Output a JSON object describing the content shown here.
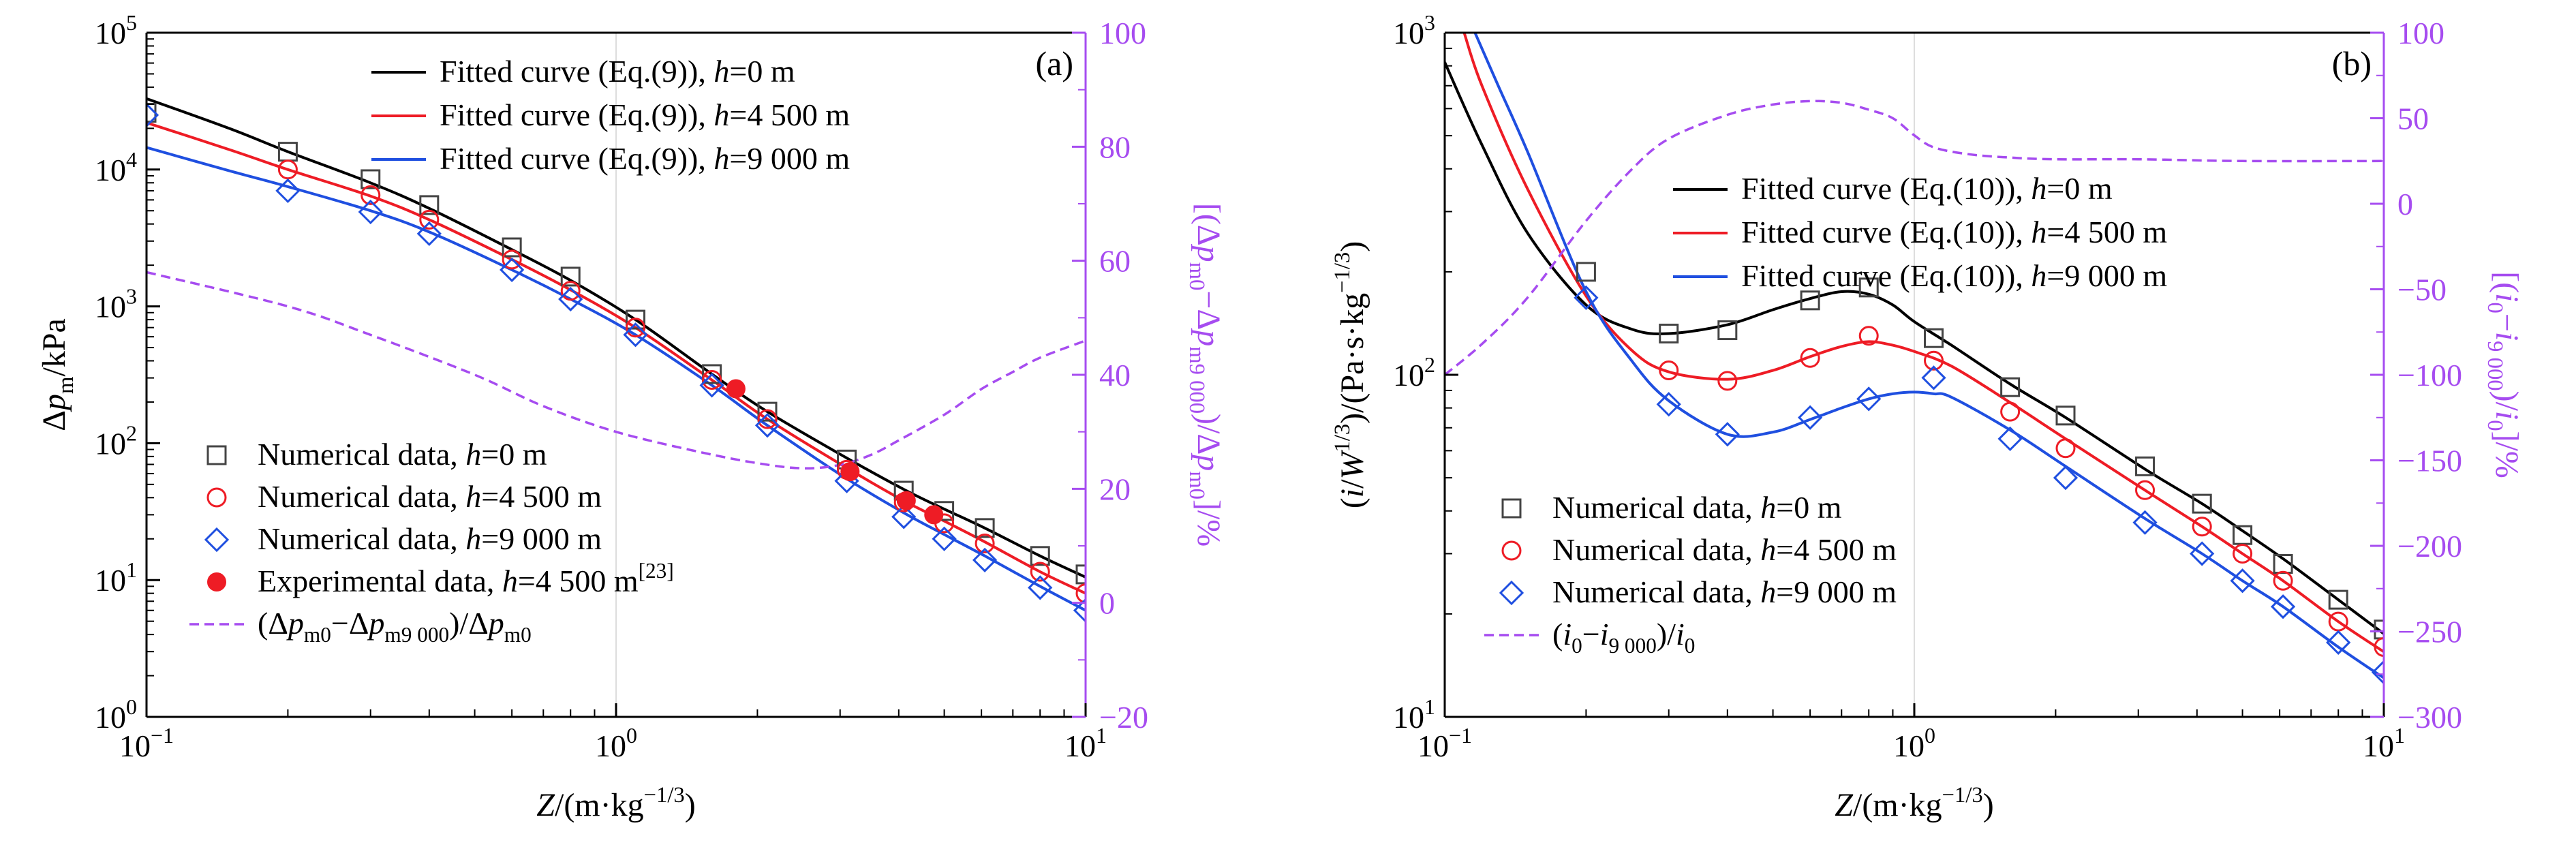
{
  "chart_data": [
    {
      "type": "scatter",
      "panel_label": "(a)",
      "xlabel": "Z/(m·kg⁻¹ᐟ³)",
      "ylabel": "Δp_m/kPa",
      "ylabel_right": "[(Δp_m0−Δp_m9 000)/Δp_m0]/%",
      "x_scale": "log",
      "y_scale": "log",
      "xlim": [
        0.1,
        10
      ],
      "ylim": [
        1,
        100000
      ],
      "y2lim": [
        -20,
        100
      ],
      "x_ticks": [
        {
          "value": 0.1,
          "base": "10",
          "exp": "−1"
        },
        {
          "value": 1,
          "base": "10",
          "exp": "0"
        },
        {
          "value": 10,
          "base": "10",
          "exp": "1"
        }
      ],
      "y_ticks": [
        {
          "value": 1,
          "base": "10",
          "exp": "0"
        },
        {
          "value": 10,
          "base": "10",
          "exp": "1"
        },
        {
          "value": 100,
          "base": "10",
          "exp": "2"
        },
        {
          "value": 1000,
          "base": "10",
          "exp": "3"
        },
        {
          "value": 10000,
          "base": "10",
          "exp": "4"
        },
        {
          "value": 100000,
          "base": "10",
          "exp": "5"
        }
      ],
      "y2_ticks": [
        "−20",
        "0",
        "20",
        "40",
        "60",
        "80",
        "100"
      ],
      "y2_tick_values": [
        -20,
        0,
        20,
        40,
        60,
        80,
        100
      ],
      "legend_top": [
        {
          "label": "Fitted curve (Eq.(9)), h=0 m",
          "color": "#000000"
        },
        {
          "label": "Fitted curve (Eq.(9)), h=4 500 m",
          "color": "#ee1c25"
        },
        {
          "label": "Fitted curve (Eq.(9)), h=9 000 m",
          "color": "#1f4fe0"
        }
      ],
      "legend_bottom": [
        {
          "label": "Numerical data, h=0 m",
          "marker": "square",
          "color": "#444444"
        },
        {
          "label": "Numerical data, h=4 500 m",
          "marker": "circle",
          "color": "#ee1c25"
        },
        {
          "label": "Numerical data, h=9 000 m",
          "marker": "diamond",
          "color": "#1f4fe0"
        },
        {
          "label": "Experimental data, h=4 500 m[23]",
          "marker": "filled-circle",
          "color": "#ee1c25"
        },
        {
          "label": "(Δp_m0−Δp_m9 000)/Δp_m0",
          "marker": "dash",
          "color": "#a64cf0"
        }
      ],
      "series": [
        {
          "name": "Fitted curve (Eq.(9)), h=0 m",
          "kind": "line",
          "color": "#000000",
          "x": [
            0.1,
            0.15,
            0.2,
            0.3,
            0.4,
            0.6,
            0.8,
            1.1,
            1.6,
            2.1,
            3.1,
            4.1,
            5,
            6.1,
            8,
            10
          ],
          "y": [
            33000,
            20000,
            13500,
            8000,
            5200,
            2600,
            1550,
            800,
            320,
            170,
            78,
            46,
            33,
            24,
            15,
            10.5
          ]
        },
        {
          "name": "Fitted curve (Eq.(9)), h=4 500 m",
          "kind": "line",
          "color": "#ee1c25",
          "x": [
            0.1,
            0.15,
            0.2,
            0.3,
            0.4,
            0.6,
            0.8,
            1.1,
            1.6,
            2.1,
            3.1,
            4.1,
            5,
            6.1,
            8,
            10
          ],
          "y": [
            22000,
            14000,
            10000,
            6400,
            4300,
            2200,
            1320,
            700,
            290,
            150,
            66,
            38,
            27,
            19,
            11.5,
            8
          ]
        },
        {
          "name": "Fitted curve (Eq.(9)), h=9 000 m",
          "kind": "line",
          "color": "#1f4fe0",
          "x": [
            0.1,
            0.15,
            0.2,
            0.3,
            0.4,
            0.6,
            0.8,
            1.1,
            1.6,
            2.1,
            3.1,
            4.1,
            5,
            6.1,
            8,
            10
          ],
          "y": [
            14500,
            9800,
            7500,
            5000,
            3500,
            1850,
            1130,
            620,
            265,
            135,
            55,
            31,
            21.5,
            15,
            9,
            6
          ]
        },
        {
          "name": "Numerical data, h=0 m",
          "kind": "points",
          "marker": "square",
          "color": "#444444",
          "x": [
            0.1,
            0.2,
            0.3,
            0.4,
            0.6,
            0.8,
            1.1,
            1.6,
            2.1,
            3.1,
            4.1,
            5,
            6.1,
            8,
            10
          ],
          "y": [
            26000,
            13500,
            8500,
            5500,
            2700,
            1650,
            800,
            320,
            170,
            76,
            45,
            32,
            24,
            15,
            11
          ]
        },
        {
          "name": "Numerical data, h=4 500 m",
          "kind": "points",
          "marker": "circle",
          "color": "#ee1c25",
          "x": [
            0.2,
            0.3,
            0.4,
            0.6,
            0.8,
            1.1,
            1.6,
            2.1,
            3.1,
            4.1,
            5,
            6.1,
            8,
            10
          ],
          "y": [
            10000,
            6500,
            4300,
            2200,
            1300,
            700,
            290,
            150,
            64,
            37,
            26,
            18.5,
            11.5,
            8
          ]
        },
        {
          "name": "Numerical data, h=9 000 m",
          "kind": "points",
          "marker": "diamond",
          "color": "#1f4fe0",
          "x": [
            0.1,
            0.2,
            0.3,
            0.4,
            0.6,
            0.8,
            1.1,
            1.6,
            2.1,
            3.1,
            4.1,
            5,
            6.1,
            8,
            10
          ],
          "y": [
            25000,
            7000,
            4900,
            3400,
            1850,
            1130,
            620,
            265,
            135,
            53,
            29,
            20,
            14,
            8.8,
            6
          ]
        },
        {
          "name": "Experimental data, h=4 500 m[23]",
          "kind": "points",
          "marker": "filled-circle",
          "color": "#ee1c25",
          "x": [
            1.8,
            3.15,
            4.15,
            4.75
          ],
          "y": [
            250,
            62,
            38,
            30
          ]
        },
        {
          "name": "(Δp_m0−Δp_m9 000)/Δp_m0",
          "kind": "dashed",
          "axis": "right",
          "color": "#a64cf0",
          "x": [
            0.1,
            0.2,
            0.3,
            0.5,
            0.7,
            1.0,
            1.5,
            2.0,
            2.5,
            3.0,
            3.5,
            4.0,
            5.0,
            6.0,
            7.0,
            8.0,
            10.0
          ],
          "y": [
            58,
            52,
            47,
            40,
            34.5,
            30,
            26.5,
            24.5,
            23.6,
            24.2,
            26,
            28.5,
            33,
            37.5,
            40.5,
            43,
            46
          ]
        }
      ]
    },
    {
      "type": "scatter",
      "panel_label": "(b)",
      "xlabel": "Z/(m·kg⁻¹ᐟ³)",
      "ylabel": "(i/W¹ᐟ³)/(Pa·s·kg⁻¹ᐟ³)",
      "ylabel_right": "[(i₀−i₉ ₀₀₀)/i₀]/%",
      "x_scale": "log",
      "y_scale": "log",
      "xlim": [
        0.1,
        10
      ],
      "ylim": [
        10,
        1000
      ],
      "y2lim": [
        -300,
        100
      ],
      "x_ticks": [
        {
          "value": 0.1,
          "base": "10",
          "exp": "−1"
        },
        {
          "value": 1,
          "base": "10",
          "exp": "0"
        },
        {
          "value": 10,
          "base": "10",
          "exp": "1"
        }
      ],
      "y_ticks": [
        {
          "value": 10,
          "base": "10",
          "exp": "1"
        },
        {
          "value": 100,
          "base": "10",
          "exp": "2"
        },
        {
          "value": 1000,
          "base": "10",
          "exp": "3"
        }
      ],
      "y2_ticks": [
        "−300",
        "−250",
        "−200",
        "−150",
        "−100",
        "−50",
        "0",
        "50",
        "100"
      ],
      "y2_tick_values": [
        -300,
        -250,
        -200,
        -150,
        -100,
        -50,
        0,
        50,
        100
      ],
      "legend_top": [
        {
          "label": "Fitted curve (Eq.(10)), h=0 m",
          "color": "#000000"
        },
        {
          "label": "Fitted curve (Eq.(10)), h=4 500 m",
          "color": "#ee1c25"
        },
        {
          "label": "Fitted curve (Eq.(10)), h=9 000 m",
          "color": "#1f4fe0"
        }
      ],
      "legend_bottom": [
        {
          "label": "Numerical data, h=0 m",
          "marker": "square",
          "color": "#444444"
        },
        {
          "label": "Numerical data, h=4 500 m",
          "marker": "circle",
          "color": "#ee1c25"
        },
        {
          "label": "Numerical data, h=9 000 m",
          "marker": "diamond",
          "color": "#1f4fe0"
        },
        {
          "label": "(i₀−i₉ ₀₀₀)/i₀",
          "marker": "dash",
          "color": "#a64cf0"
        }
      ],
      "series": [
        {
          "name": "Fitted curve (Eq.(10)), h=0 m",
          "kind": "line",
          "color": "#000000",
          "x": [
            0.1,
            0.12,
            0.15,
            0.2,
            0.25,
            0.3,
            0.4,
            0.5,
            0.6,
            0.7,
            0.8,
            0.9,
            1.0,
            1.2,
            1.6,
            2.1,
            3.1,
            4.1,
            5,
            6.1,
            8,
            10
          ],
          "y": [
            820,
            470,
            260,
            160,
            136,
            132,
            140,
            155,
            167,
            175,
            172,
            160,
            143,
            122,
            94,
            75,
            53,
            42,
            35,
            29,
            22,
            17.5
          ]
        },
        {
          "name": "Fitted curve (Eq.(10)), h=4 500 m",
          "kind": "line",
          "color": "#ee1c25",
          "x": [
            0.11,
            0.12,
            0.15,
            0.2,
            0.25,
            0.3,
            0.4,
            0.5,
            0.6,
            0.7,
            0.8,
            0.9,
            1.0,
            1.2,
            1.6,
            2.1,
            3.1,
            4.1,
            5,
            6.1,
            8,
            10
          ],
          "y": [
            1000,
            700,
            350,
            170,
            118,
            102,
            97,
            103,
            113,
            121,
            125,
            122,
            117,
            106,
            83,
            65,
            46,
            36,
            30,
            25,
            19,
            15.5
          ]
        },
        {
          "name": "Fitted curve (Eq.(10)), h=9 000 m",
          "kind": "line",
          "color": "#1f4fe0",
          "x": [
            0.116,
            0.13,
            0.15,
            0.2,
            0.25,
            0.3,
            0.4,
            0.5,
            0.6,
            0.7,
            0.8,
            0.9,
            1.0,
            1.1,
            1.2,
            1.6,
            2.1,
            3.1,
            4.1,
            5,
            6.1,
            8,
            10
          ],
          "y": [
            1000,
            700,
            450,
            175,
            110,
            84,
            67,
            68,
            74,
            80,
            85,
            88,
            89,
            88,
            86,
            69,
            54,
            38,
            30,
            25,
            21,
            16,
            13
          ]
        },
        {
          "name": "Numerical data, h=0 m",
          "kind": "points",
          "marker": "square",
          "color": "#444444",
          "x": [
            0.2,
            0.3,
            0.4,
            0.6,
            0.8,
            1.1,
            1.6,
            2.1,
            3.1,
            4.1,
            5,
            6.1,
            8,
            10
          ],
          "y": [
            200,
            132,
            135,
            165,
            180,
            128,
            92,
            76,
            54,
            42,
            34,
            28,
            22,
            18
          ]
        },
        {
          "name": "Numerical data, h=4 500 m",
          "kind": "points",
          "marker": "circle",
          "color": "#ee1c25",
          "x": [
            0.3,
            0.4,
            0.6,
            0.8,
            1.1,
            1.6,
            2.1,
            3.1,
            4.1,
            5,
            6.1,
            8,
            10
          ],
          "y": [
            103,
            96,
            112,
            130,
            110,
            78,
            61,
            46,
            36,
            30,
            25,
            19,
            16
          ]
        },
        {
          "name": "Numerical data, h=9 000 m",
          "kind": "points",
          "marker": "diamond",
          "color": "#1f4fe0",
          "x": [
            0.2,
            0.3,
            0.4,
            0.6,
            0.8,
            1.1,
            1.6,
            2.1,
            3.1,
            4.1,
            5,
            6.1,
            8,
            10
          ],
          "y": [
            168,
            82,
            67,
            75,
            85,
            98,
            65,
            50,
            37,
            30,
            25,
            21,
            16.5,
            13.5
          ]
        },
        {
          "name": "(i₀−i₉ ₀₀₀)/i₀",
          "kind": "dashed",
          "axis": "right",
          "color": "#a64cf0",
          "x": [
            0.1,
            0.12,
            0.15,
            0.2,
            0.25,
            0.3,
            0.4,
            0.5,
            0.6,
            0.7,
            0.8,
            0.9,
            1.0,
            1.1,
            1.3,
            1.6,
            2.0,
            3.0,
            5.0,
            10.0
          ],
          "y": [
            -100,
            -82,
            -55,
            -10,
            20,
            38,
            52,
            58,
            60,
            59,
            55,
            50,
            40,
            33,
            29,
            27,
            26,
            26,
            25,
            25
          ]
        }
      ]
    }
  ]
}
